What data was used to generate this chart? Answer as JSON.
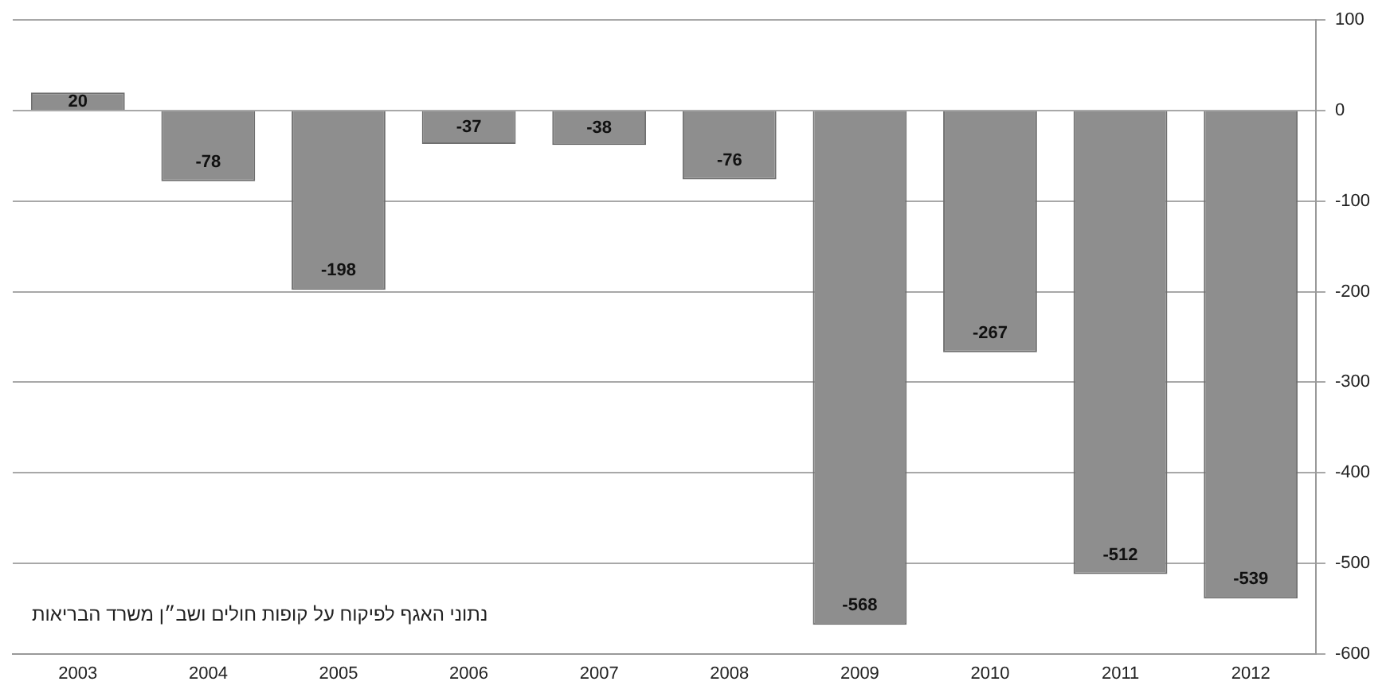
{
  "chart_data": {
    "type": "bar",
    "categories": [
      "2003",
      "2004",
      "2005",
      "2006",
      "2007",
      "2008",
      "2009",
      "2010",
      "2011",
      "2012"
    ],
    "values": [
      20,
      -78,
      -198,
      -37,
      -38,
      -76,
      -568,
      -267,
      -512,
      -539
    ],
    "color": "#8e8e8e",
    "ylim": [
      -600,
      100
    ],
    "yticks": [
      100,
      0,
      -100,
      -200,
      -300,
      -400,
      -500,
      -600
    ],
    "grid": "y",
    "legend": false,
    "data_labels": true,
    "annotations": [
      "נתוני האגף לפיקוח על קופות חולים ושב״ן משרד הבריאות"
    ]
  }
}
